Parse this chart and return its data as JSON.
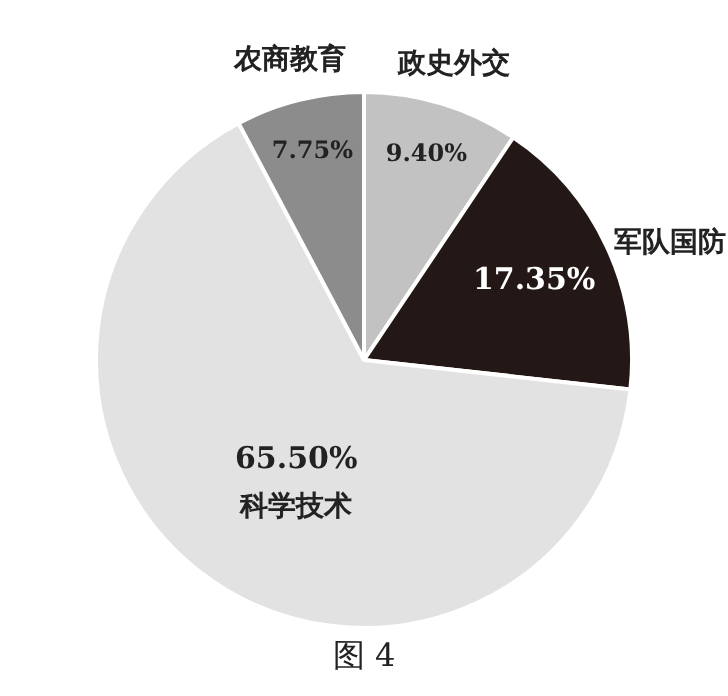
{
  "chart_data": {
    "type": "pie",
    "categories": [
      "政史外交",
      "军队国防",
      "科学技术",
      "农商教育"
    ],
    "values": [
      9.4,
      17.35,
      65.5,
      7.75
    ],
    "value_labels": [
      "9.40%",
      "17.35%",
      "65.50%",
      "7.75%"
    ],
    "colors": [
      "#c2c2c2",
      "#231816",
      "#e2e2e2",
      "#8c8c8c"
    ],
    "legend": false,
    "annotations": [
      "图 4"
    ]
  }
}
